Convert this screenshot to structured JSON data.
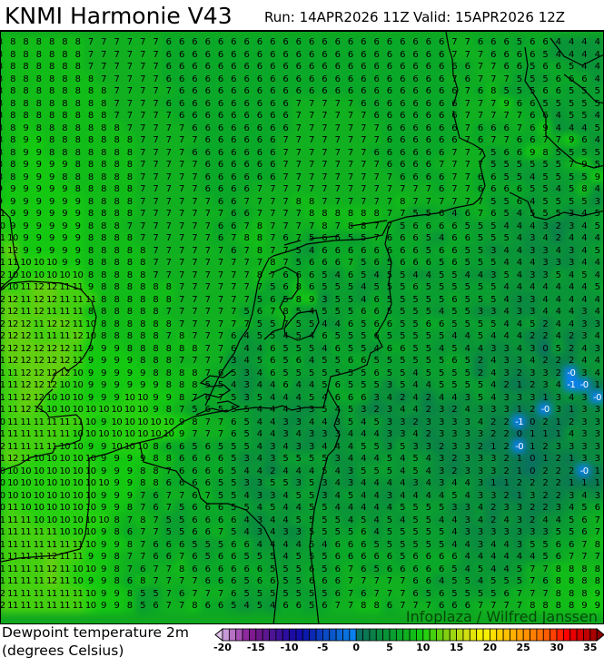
{
  "header": {
    "title": "KNMI Harmonie V43",
    "run": "Run: 14APR2026 11Z",
    "valid": "Valid: 15APR2026 12Z"
  },
  "map": {
    "variable": "Dewpoint temperature 2m",
    "units": "(degrees Celsius)",
    "watermark": "Infoplaza / Wilfred Janssen",
    "negative_label_color": "#ffffff",
    "coastline_color": "#000000",
    "grid": [
      "8 8 8 8 8 8 8 7 7 7 7 7 7 6 6 6 6 6 6 6 6 6 6 6 6 6 6 6 6 6 6 6 6 6 6 7 7 6 6 6 5 6 6 4 4 4 4",
      "8 8 8 8 8 8 8 7 7 7 7 7 7 6 6 6 6 6 6 6 6 6 6 6 6 6 6 6 6 6 6 6 6 6 6 7 7 7 6 6 6 6 5 4 4 4 4",
      "8 8 8 8 8 8 8 7 7 7 7 7 7 6 6 6 6 6 6 6 6 6 6 6 6 6 6 6 6 6 6 6 6 6 6 6 6 7 7 6 6 5 6 6 5 4 4",
      "8 8 8 8 8 8 8 8 7 7 7 7 7 6 6 6 6 6 6 6 6 6 6 6 6 6 6 6 6 6 6 6 6 6 6 7 6 7 7 7 5 5 5 6 6 6 4",
      "8 8 8 8 8 8 8 8 8 7 7 7 7 7 6 6 6 6 6 6 6 6 6 6 6 6 6 6 6 6 6 6 6 6 6 6 7 6 8 5 5 5 6 6 5 5 5",
      "8 8 8 8 8 8 8 8 8 7 7 7 7 6 6 6 6 6 6 6 6 6 6 7 7 7 7 7 6 6 6 6 6 6 6 6 7 7 7 9 6 6 5 5 5 5 5",
      "8 8 8 8 8 8 8 8 8 7 7 7 7 7 6 6 6 6 6 6 6 6 6 7 7 7 7 7 7 6 6 6 6 6 6 6 7 7 7 7 7 6 6 4 5 5 4",
      "8 8 9 8 8 8 8 8 8 8 7 7 7 7 7 6 6 6 6 6 6 6 6 7 7 7 7 7 7 7 6 6 6 6 6 6 7 6 6 6 7 6 9 4 4 4 5",
      "8 8 9 9 8 8 8 8 8 8 8 7 7 7 7 7 6 6 6 6 6 6 7 7 7 7 7 7 7 7 6 6 6 6 6 6 7 6 7 7 6 6 7 7 9 6 4",
      "8 8 9 9 8 8 8 8 8 8 8 7 7 7 7 6 6 6 6 6 6 6 7 7 7 7 7 7 7 6 6 6 6 6 6 7 7 7 5 6 6 9 8 5 5 5 5",
      "8 8 9 9 9 9 8 8 8 8 8 7 7 7 7 7 6 6 6 6 6 6 7 7 7 7 7 7 7 7 6 6 6 6 7 7 7 7 5 5 5 5 5 5 7 9 5",
      "8 8 9 9 9 8 8 8 8 8 8 7 7 7 7 7 6 6 6 6 6 6 7 7 7 7 7 7 7 7 7 6 6 6 6 7 7 6 6 5 5 4 5 5 5 5 9",
      "9 9 9 9 9 9 8 8 8 8 8 7 7 7 7 7 6 6 6 6 7 7 7 7 7 7 7 7 7 7 7 7 7 7 6 7 7 6 6 6 6 5 5 4 5 8 4",
      "9 9 9 9 9 9 9 8 8 8 8 7 7 7 7 7 7 6 6 7 7 7 7 8 8 7 7 7 7 7 7 8 7 7 7 7 7 7 5 5 6 4 5 5 5 5 3",
      "11 9 9 9 9 9 9 8 8 8 8 7 7 7 7 7 7 7 6 6 7 7 7 7 8 8 8 8 8 8 7 7 5 5 6 4 6 7 6 5 4 5 5 5 3 4 5",
      "10 9 9 9 9 9 9 8 8 8 7 7 7 7 7 7 7 6 6 7 8 7 7 7 7 8 7 8 8 7 7 5 6 6 6 6 5 5 5 4 4 4 3 2 3 4 5",
      "11 10 9 9 9 9 9 8 8 8 8 7 7 7 7 7 7 6 7 8 8 7 6 7 5 6 6 5 5 7 6 6 6 5 4 6 6 5 5 5 4 3 4 2 4 4 4",
      "11 12 9 9 9 9 9 8 8 8 8 8 7 7 7 7 7 7 6 7 8 7 7 5 4 6 6 6 6 6 6 6 6 5 6 6 5 5 3 4 4 3 3 4 3 4 5",
      "11 11 10 10 10 9 9 8 8 8 8 8 7 7 7 7 7 7 7 7 7 8 7 5 6 6 6 7 5 6 5 6 6 6 5 6 5 5 5 4 4 4 3 3 3 4 4",
      "12 10 10 10 10 10 10 8 8 8 8 8 7 7 7 7 7 7 7 7 8 7 6 6 6 5 4 6 5 4 5 5 4 4 5 5 4 4 3 5 4 3 3 5 4 5 4",
      "12 10 11 12 12 11 11 9 8 8 8 8 8 8 7 7 7 7 7 7 7 5 6 8 6 5 5 5 4 5 5 5 6 5 5 5 5 5 5 4 4 4 4 4 4 4 5",
      "12 12 11 12 12 11 11 11 8 8 8 8 8 8 7 7 7 7 7 7 5 6 5 8 9 3 5 5 4 6 5 5 5 5 5 6 5 5 5 4 3 3 4 4 4 4 4",
      "12 12 11 12 11 11 11 8 8 8 8 8 8 7 7 7 7 7 7 5 6 7 8 5 4 5 5 5 6 6 5 5 5 5 4 5 5 3 3 4 3 3 4 4 4 3 4",
      "12 12 12 11 12 12 11 10 8 8 8 8 8 8 7 7 7 7 7 7 5 5 7 5 5 4 4 6 5 6 6 5 5 6 6 5 5 5 5 4 4 5 2 4 4 3 3",
      "12 12 12 11 11 11 12 10 8 8 8 8 8 7 8 7 7 7 6 4 5 5 4 5 4 6 5 5 5 6 5 5 5 5 5 4 4 5 4 4 4 2 2 4 2 3 4",
      "12 12 12 12 12 12 11 9 9 9 8 8 8 8 8 8 7 7 6 4 4 6 5 5 5 4 6 5 5 4 6 6 5 5 4 5 4 4 3 3 4 3 0 5 2 4 3",
      "11 12 12 12 12 12 11 9 9 9 9 8 8 8 7 7 7 7 3 4 5 6 5 6 4 5 5 6 6 5 5 5 5 5 5 6 5 2 4 3 3 4 2 2 2 4 4",
      "11 11 12 12 12 12 10 9 9 9 9 9 8 8 8 8 7 6 5 3 4 6 5 5 5 5 5 5 5 6 5 5 4 5 5 5 5 2 4 3 2 3 3 2 -0 3 4",
      "11 11 12 12 12 10 10 9 9 9 9 9 9 8 8 8 5 5 4 3 4 4 6 4 4 5 6 5 5 5 3 5 4 4 5 5 5 5 4 2 1 2 3 4 -1 -0 1",
      "11 11 12 12 10 10 10 9 9 9 10 10 9 9 8 7 6 7 5 3 5 4 4 4 5 4 6 6 6 3 4 2 4 2 4 4 3 5 4 3 3 3 1 3 4 3 -0",
      "11 11 12 11 10 10 10 10 10 10 10 10 9 8 7 5 6 5 5 5 4 4 4 3 3 5 4 5 3 2 3 4 4 2 3 2 4 3 3 3 1 2 -0 3 1 3 3",
      "10 11 11 11 11 11 11 10 9 10 10 10 10 10 9 8 7 7 6 5 4 4 3 3 4 4 3 5 4 5 3 3 2 3 3 3 3 4 2 2 -1 0 2 1 2 3 3",
      "11 11 11 11 11 11 10 10 10 10 10 10 10 10 9 7 7 7 6 5 4 4 3 4 3 3 3 4 4 4 3 3 4 2 3 3 3 3 2 2 0 1 1 1 4 3 3",
      "12 11 11 11 11 10 10 9 9 10 10 10 8 6 6 5 6 5 5 5 4 3 4 3 3 4 4 4 5 5 3 5 3 3 2 3 3 2 1 2 -0 1 2 3 3 3 3",
      "11 12 11 10 10 10 10 10 9 9 9 9 8 8 6 6 6 6 5 3 4 3 5 5 5 5 3 4 4 4 5 4 5 4 3 2 3 3 3 2 1 0 1 2 1 3 3",
      "10 10 10 10 10 10 10 10 9 9 9 8 8 7 6 6 6 6 5 4 4 2 4 4 4 5 4 3 5 5 5 4 5 4 3 2 3 3 3 2 1 0 2 2 2 -0 1",
      "10 10 10 10 10 10 10 10 10 9 9 8 8 6 6 6 6 5 5 3 3 5 5 3 5 3 4 3 4 4 4 4 3 4 3 4 4 3 1 1 2 2 2 2 1 1 1",
      "10 10 10 10 10 10 10 10 9 9 9 7 6 7 7 6 7 5 5 4 3 3 4 5 5 3 4 5 4 4 3 4 4 4 4 5 4 3 3 2 1 3 2 2 3 4 3",
      "10 11 10 10 10 10 10 10 9 9 8 7 6 7 5 6 6 6 5 5 4 5 4 4 5 5 4 4 4 4 4 5 5 5 5 3 3 4 2 3 3 2 2 3 4 5 6",
      "11 11 11 10 10 10 10 10 10 8 7 8 7 5 5 6 6 6 6 4 3 4 4 5 5 5 5 4 5 4 5 4 5 5 4 4 3 4 2 4 3 2 4 4 5 6 7",
      "11 11 11 11 11 10 10 10 9 8 6 7 7 5 5 6 6 7 5 4 3 4 3 3 5 5 5 5 6 4 5 5 5 5 5 4 3 3 3 3 3 3 3 5 5 6 7",
      "11 11 11 11 11 11 11 10 9 9 8 7 6 6 6 5 5 5 6 6 4 4 4 4 5 4 6 6 6 5 5 5 5 5 5 4 4 3 4 4 3 5 5 6 6 7 8",
      "11 11 11 11 12 11 11 9 9 8 7 7 6 6 7 6 5 6 6 5 5 5 4 5 5 5 6 6 6 6 6 5 6 6 6 6 4 4 4 4 4 4 5 6 7 7 7",
      "11 11 11 11 12 11 10 10 9 8 7 6 7 7 8 6 6 6 6 6 6 5 5 5 6 5 6 7 6 5 6 6 6 6 6 5 4 5 4 4 5 7 7 8 8 8 8",
      "11 11 11 11 12 11 10 9 9 8 6 8 7 7 7 7 6 6 6 5 6 6 5 5 6 6 6 7 7 7 7 7 6 6 4 5 5 4 5 5 5 7 6 8 8 8 8",
      "12 11 11 11 11 11 11 10 9 9 8 5 5 7 6 7 7 7 6 5 5 5 5 5 5 5 6 7 6 7 7 7 6 5 6 5 5 5 5 6 7 7 7 8 8 8 9",
      "12 11 11 11 11 11 11 10 9 9 8 5 6 7 7 8 6 6 5 4 5 4 6 6 5 6 7 7 8 8 6 7 7 7 6 6 6 7 7 7 7 8 8 8 8 9 9"
    ]
  },
  "legend": {
    "min_value": -20,
    "step": 1,
    "tick_labels": [
      "-20",
      "-15",
      "-10",
      "-5",
      "0",
      "5",
      "10",
      "15",
      "20",
      "25",
      "30",
      "35"
    ],
    "below_color": "#e0c4ea",
    "above_color": "#8c0000",
    "colors": [
      "#c89ad8",
      "#b670c4",
      "#a450b4",
      "#8e2a9e",
      "#7c1a8e",
      "#6c168c",
      "#5c1690",
      "#4c1494",
      "#3c1098",
      "#2c0ea0",
      "#1c0ca4",
      "#120ea8",
      "#0c1aac",
      "#0a2ab4",
      "#0a3abc",
      "#0a4ac4",
      "#0a58cc",
      "#0a66d4",
      "#0a72de",
      "#0a80f0",
      "#0a7060",
      "#0a7852",
      "#0a8048",
      "#0a8a40",
      "#0a9438",
      "#0a9e30",
      "#0aa828",
      "#10b020",
      "#12bc18",
      "#14c812",
      "#26d010",
      "#44d010",
      "#62d010",
      "#80d010",
      "#9ed612",
      "#b8da10",
      "#d0e010",
      "#e2e40a",
      "#f2f000",
      "#f8f000",
      "#ffe000",
      "#ffd000",
      "#ffc000",
      "#ffb000",
      "#ffa000",
      "#ff9000",
      "#ff8000",
      "#ff7000",
      "#ff5c00",
      "#ff4000",
      "#ff2000",
      "#ff0000",
      "#e80000",
      "#d40000",
      "#c00000",
      "#aa0000"
    ]
  }
}
